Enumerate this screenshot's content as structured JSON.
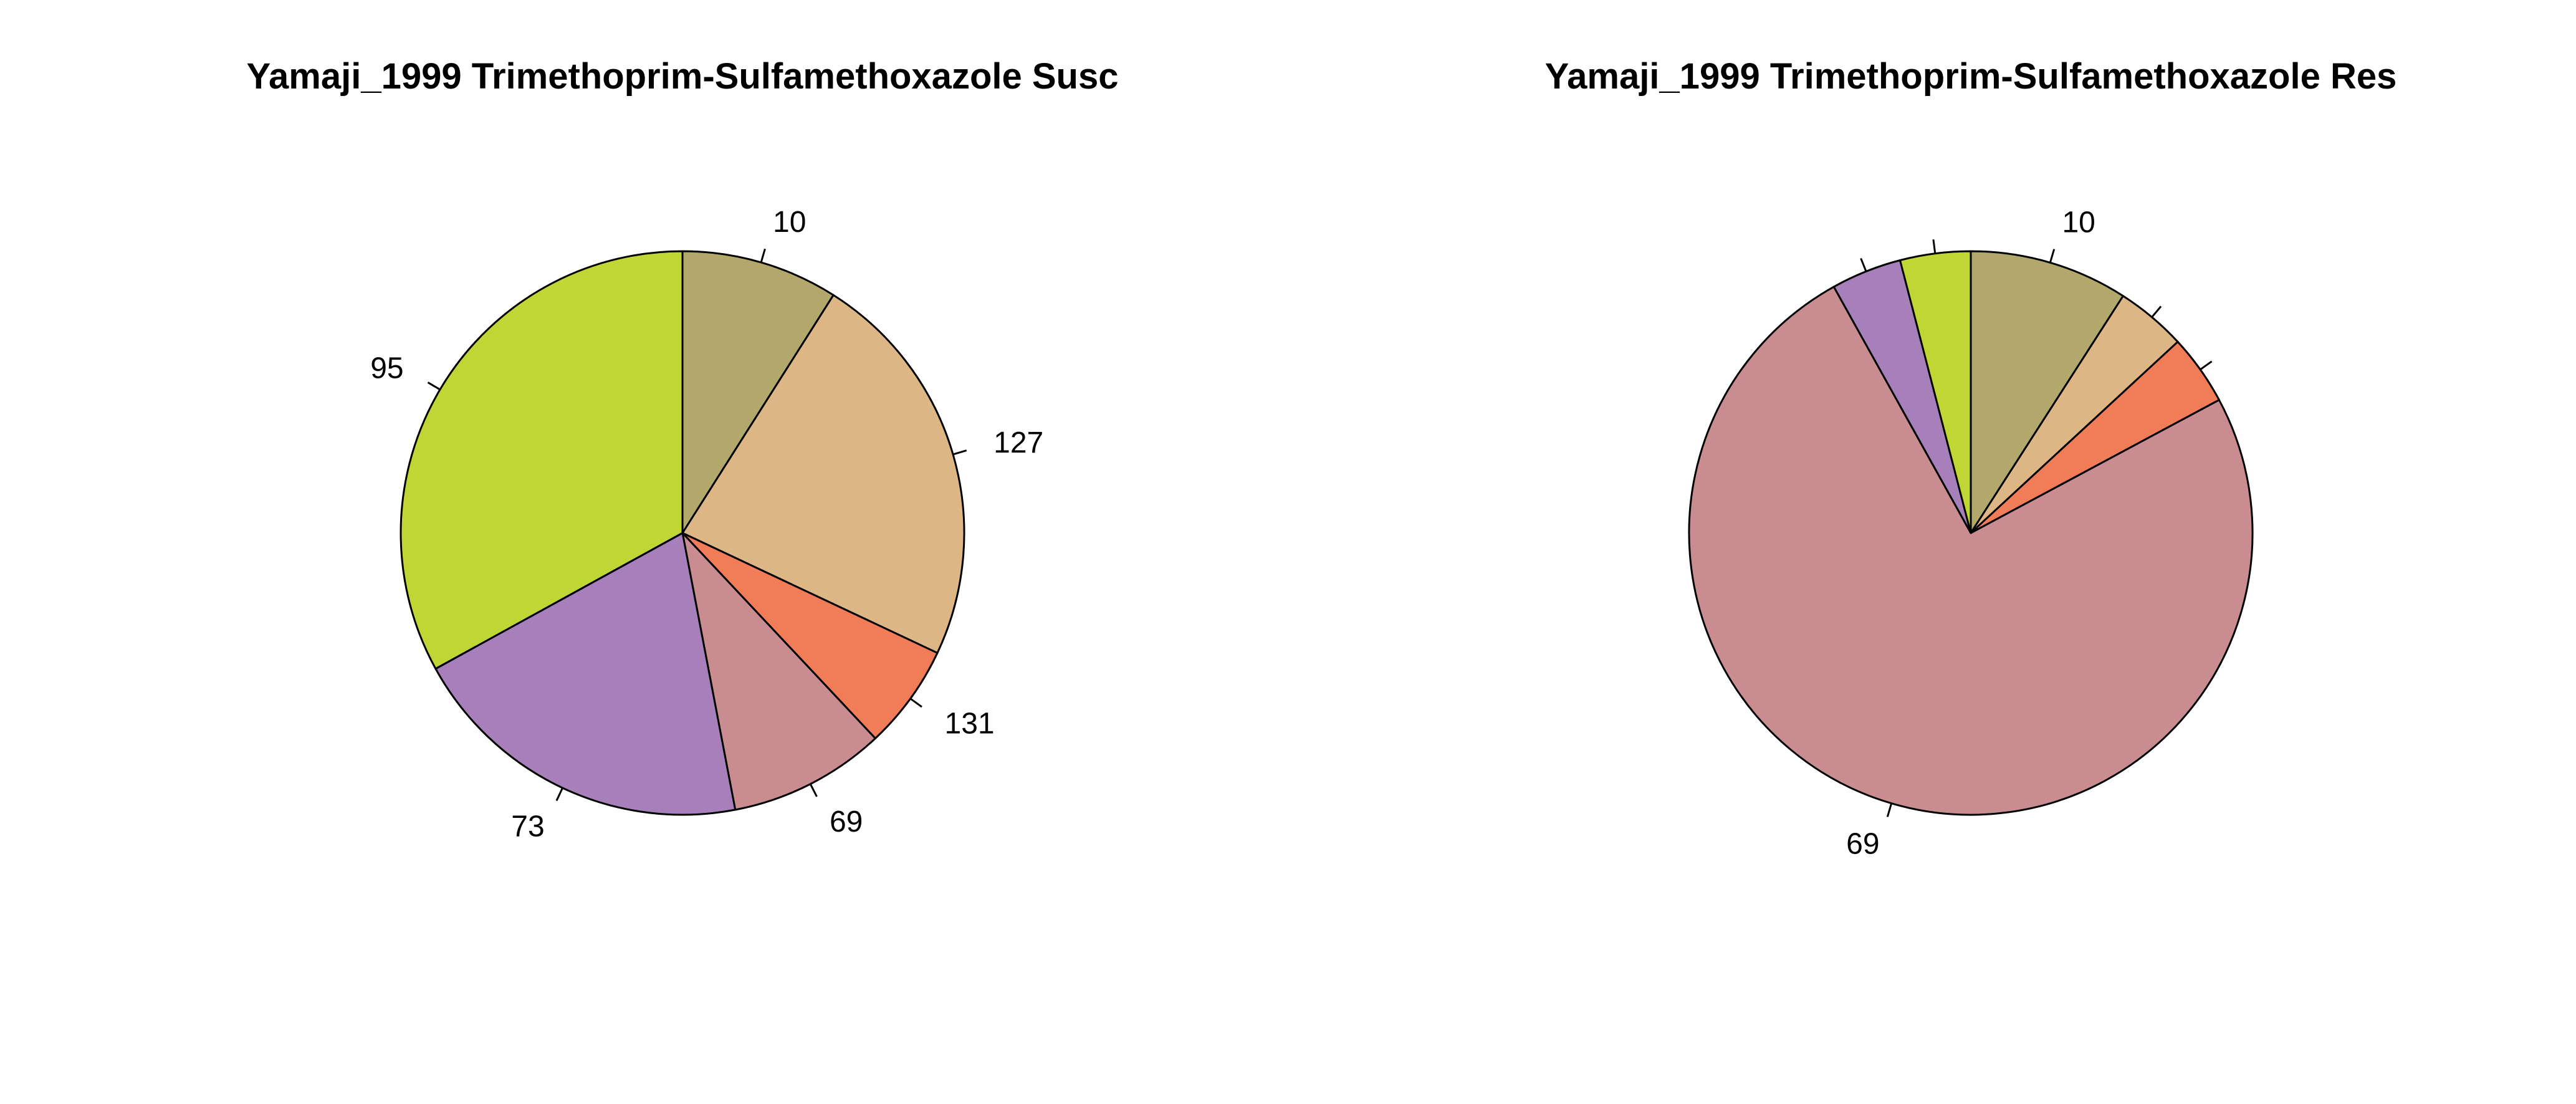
{
  "chart_data": [
    {
      "type": "pie",
      "title": "Yamaji_1999 Trimethoprim-Sulfamethoxazole Susc",
      "start": "12 o'clock",
      "direction": "clockwise",
      "slices": [
        {
          "label": "10",
          "value": 9,
          "color": "#B3A86C"
        },
        {
          "label": "127",
          "value": 23,
          "color": "#DCB785"
        },
        {
          "label": "131",
          "value": 6,
          "color": "#F07C58"
        },
        {
          "label": "69",
          "value": 9,
          "color": "#C98C90"
        },
        {
          "label": "73",
          "value": 20,
          "color": "#A77FBB"
        },
        {
          "label": "95",
          "value": 33,
          "color": "#BFD634"
        }
      ]
    },
    {
      "type": "pie",
      "title": "Yamaji_1999 Trimethoprim-Sulfamethoxazole Res",
      "start": "12 o'clock",
      "direction": "clockwise",
      "slices": [
        {
          "label": "10",
          "value": 9,
          "color": "#B3A86C"
        },
        {
          "label": "",
          "value": 4,
          "color": "#DCB785"
        },
        {
          "label": "",
          "value": 4,
          "color": "#F07C58"
        },
        {
          "label": "69",
          "value": 74,
          "color": "#C98C90"
        },
        {
          "label": "",
          "value": 4,
          "color": "#A77FBB"
        },
        {
          "label": "",
          "value": 4,
          "color": "#BFD634"
        }
      ]
    }
  ]
}
